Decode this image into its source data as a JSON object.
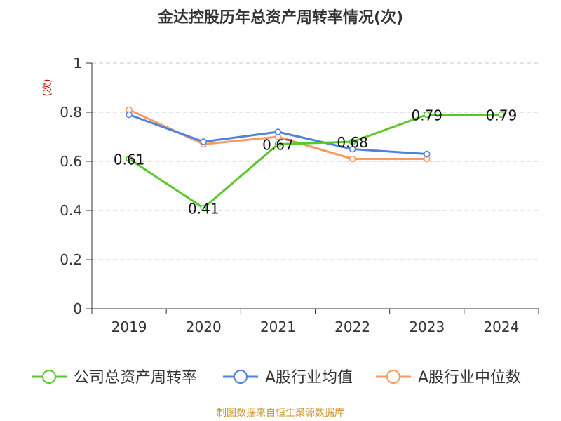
{
  "chart_data": {
    "type": "line",
    "title": "金达控股历年总资产周转率情况(次)",
    "ylabel": "(次)",
    "xlabel": "",
    "categories": [
      "2019",
      "2020",
      "2021",
      "2022",
      "2023",
      "2024"
    ],
    "ylim": [
      0,
      1
    ],
    "yticks": [
      0,
      0.2,
      0.4,
      0.6,
      0.8,
      1
    ],
    "ytick_labels": [
      "0",
      "0.2",
      "0.4",
      "0.6",
      "0.8",
      "1"
    ],
    "grid": true,
    "legend_position": "bottom",
    "series": [
      {
        "name": "公司总资产周转率",
        "color": "#5cc62b",
        "values": [
          0.61,
          0.41,
          0.67,
          0.68,
          0.79,
          0.79
        ],
        "data_labels": [
          "0.61",
          "0.41",
          "0.67",
          "0.68",
          "0.79",
          "0.79"
        ]
      },
      {
        "name": "A股行业均值",
        "color": "#4f81e0",
        "values": [
          0.79,
          0.68,
          0.72,
          0.65,
          0.63,
          null
        ]
      },
      {
        "name": "A股行业中位数",
        "color": "#f79a64",
        "values": [
          0.81,
          0.67,
          0.7,
          0.61,
          0.61,
          null
        ]
      }
    ],
    "source": "制图数据来自恒生聚源数据库"
  },
  "colors": {
    "title": "#333333",
    "axis": "#333333",
    "grid": "#c8c8c8",
    "ylabel": "#cc0000",
    "source": "#c8962c"
  }
}
